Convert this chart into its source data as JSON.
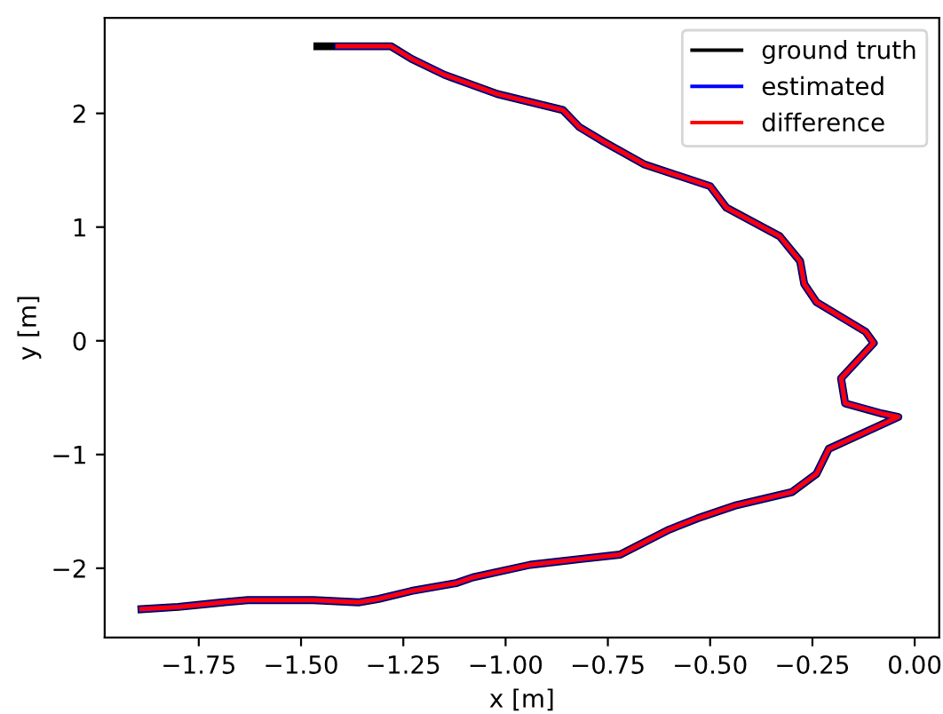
{
  "chart_data": {
    "type": "line",
    "xlabel": "x [m]",
    "ylabel": "y [m]",
    "xlim": [
      -1.98,
      0.06
    ],
    "ylim": [
      -2.61,
      2.84
    ],
    "xticks": [
      {
        "value": -1.75,
        "label": "−1.75"
      },
      {
        "value": -1.5,
        "label": "−1.50"
      },
      {
        "value": -1.25,
        "label": "−1.25"
      },
      {
        "value": -1.0,
        "label": "−1.00"
      },
      {
        "value": -0.75,
        "label": "−0.75"
      },
      {
        "value": -0.5,
        "label": "−0.50"
      },
      {
        "value": -0.25,
        "label": "−0.25"
      },
      {
        "value": 0,
        "label": "0.00"
      }
    ],
    "yticks": [
      {
        "value": -2,
        "label": "−2"
      },
      {
        "value": -1,
        "label": "−1"
      },
      0,
      1,
      2
    ],
    "grid": false,
    "legend": "top right",
    "marker": "none",
    "line_style": "solid",
    "series": [
      {
        "name": "ground truth",
        "color": "#000000",
        "x": [
          -1.46,
          -1.41,
          -1.28,
          -1.23,
          -1.15,
          -1.02,
          -0.86,
          -0.82,
          -0.76,
          -0.66,
          -0.5,
          -0.46,
          -0.33,
          -0.28,
          -0.27,
          -0.24,
          -0.12,
          -0.1,
          -0.18,
          -0.17,
          -0.08,
          -0.04,
          -0.21,
          -0.24,
          -0.3,
          -0.44,
          -0.53,
          -0.6,
          -0.72,
          -0.82,
          -0.94,
          -1.08,
          -1.12,
          -1.23,
          -1.31,
          -1.36,
          -1.47,
          -1.63,
          -1.69,
          -1.8,
          -1.89
        ],
        "values": [
          2.59,
          2.59,
          2.59,
          2.48,
          2.34,
          2.17,
          2.03,
          1.88,
          1.75,
          1.55,
          1.36,
          1.17,
          0.92,
          0.7,
          0.5,
          0.34,
          0.08,
          -0.02,
          -0.33,
          -0.55,
          -0.64,
          -0.67,
          -0.95,
          -1.17,
          -1.33,
          -1.45,
          -1.56,
          -1.66,
          -1.88,
          -1.92,
          -1.97,
          -2.08,
          -2.13,
          -2.2,
          -2.27,
          -2.3,
          -2.28,
          -2.28,
          -2.3,
          -2.34,
          -2.36
        ]
      },
      {
        "name": "estimated",
        "color": "#0000ff",
        "x": [
          -1.41,
          -1.28,
          -1.23,
          -1.15,
          -1.02,
          -0.86,
          -0.82,
          -0.76,
          -0.66,
          -0.5,
          -0.46,
          -0.33,
          -0.28,
          -0.27,
          -0.24,
          -0.12,
          -0.1,
          -0.18,
          -0.17,
          -0.08,
          -0.04,
          -0.21,
          -0.24,
          -0.3,
          -0.44,
          -0.53,
          -0.6,
          -0.72,
          -0.82,
          -0.94,
          -1.08,
          -1.12,
          -1.23,
          -1.31,
          -1.36,
          -1.47,
          -1.63,
          -1.69,
          -1.8,
          -1.89
        ],
        "values": [
          2.59,
          2.59,
          2.48,
          2.34,
          2.17,
          2.03,
          1.88,
          1.75,
          1.55,
          1.36,
          1.17,
          0.92,
          0.7,
          0.5,
          0.34,
          0.08,
          -0.02,
          -0.33,
          -0.55,
          -0.64,
          -0.67,
          -0.95,
          -1.17,
          -1.33,
          -1.45,
          -1.56,
          -1.66,
          -1.88,
          -1.92,
          -1.97,
          -2.08,
          -2.13,
          -2.2,
          -2.27,
          -2.3,
          -2.28,
          -2.28,
          -2.3,
          -2.34,
          -2.36
        ]
      },
      {
        "name": "difference",
        "color": "#ff0000",
        "x": [
          -1.41,
          -1.28,
          -1.23,
          -1.15,
          -1.02,
          -0.86,
          -0.82,
          -0.76,
          -0.66,
          -0.5,
          -0.46,
          -0.33,
          -0.28,
          -0.27,
          -0.24,
          -0.12,
          -0.1,
          -0.18,
          -0.17,
          -0.08,
          -0.04,
          -0.21,
          -0.24,
          -0.3,
          -0.44,
          -0.53,
          -0.6,
          -0.72,
          -0.82,
          -0.94,
          -1.08,
          -1.12,
          -1.23,
          -1.31,
          -1.36,
          -1.47,
          -1.63,
          -1.69,
          -1.8,
          -1.89
        ],
        "values": [
          2.59,
          2.59,
          2.48,
          2.34,
          2.17,
          2.03,
          1.88,
          1.75,
          1.55,
          1.36,
          1.17,
          0.92,
          0.7,
          0.5,
          0.34,
          0.08,
          -0.02,
          -0.33,
          -0.55,
          -0.64,
          -0.67,
          -0.95,
          -1.17,
          -1.33,
          -1.45,
          -1.56,
          -1.66,
          -1.88,
          -1.92,
          -1.97,
          -2.08,
          -2.13,
          -2.2,
          -2.27,
          -2.3,
          -2.28,
          -2.28,
          -2.3,
          -2.34,
          -2.36
        ]
      }
    ]
  }
}
